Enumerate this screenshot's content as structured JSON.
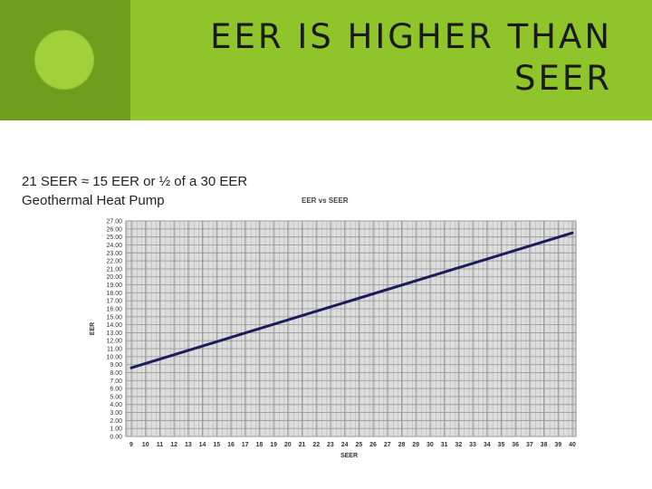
{
  "slide": {
    "title_line1": "EER IS HIGHER THAN",
    "title_line2": "SEER",
    "caption_line1": "21 SEER ≈ 15 EER or ½ of a 30 EER",
    "caption_line2": "Geothermal Heat Pump"
  },
  "colors": {
    "band_dark": "#6f9e1f",
    "band_light": "#8fc42b",
    "circle": "#a0d03a",
    "series_line": "#1c1c5a",
    "grid": "#9a9a9a",
    "plot_bg": "#dedede"
  },
  "chart_data": {
    "type": "line",
    "title": "EER vs SEER",
    "xlabel": "SEER",
    "ylabel": "EER",
    "xlim": [
      9,
      40
    ],
    "ylim": [
      0,
      27
    ],
    "x_ticks": [
      9,
      10,
      11,
      12,
      13,
      14,
      15,
      16,
      17,
      18,
      19,
      20,
      21,
      22,
      23,
      24,
      25,
      26,
      27,
      28,
      29,
      30,
      31,
      32,
      33,
      34,
      35,
      36,
      37,
      38,
      39,
      40
    ],
    "y_ticks": [
      "0.00",
      "1.00",
      "2.00",
      "3.00",
      "4.00",
      "5.00",
      "6.00",
      "7.00",
      "8.00",
      "9.00",
      "10.00",
      "11.00",
      "12.00",
      "13.00",
      "14.00",
      "15.00",
      "16.00",
      "17.00",
      "18.00",
      "19.00",
      "20.00",
      "21.00",
      "22.00",
      "23.00",
      "24.00",
      "25.00",
      "26.00",
      "27.00"
    ],
    "grid": true,
    "series": [
      {
        "x": [
          9,
          40
        ],
        "y": [
          8.6,
          25.5
        ]
      }
    ]
  }
}
